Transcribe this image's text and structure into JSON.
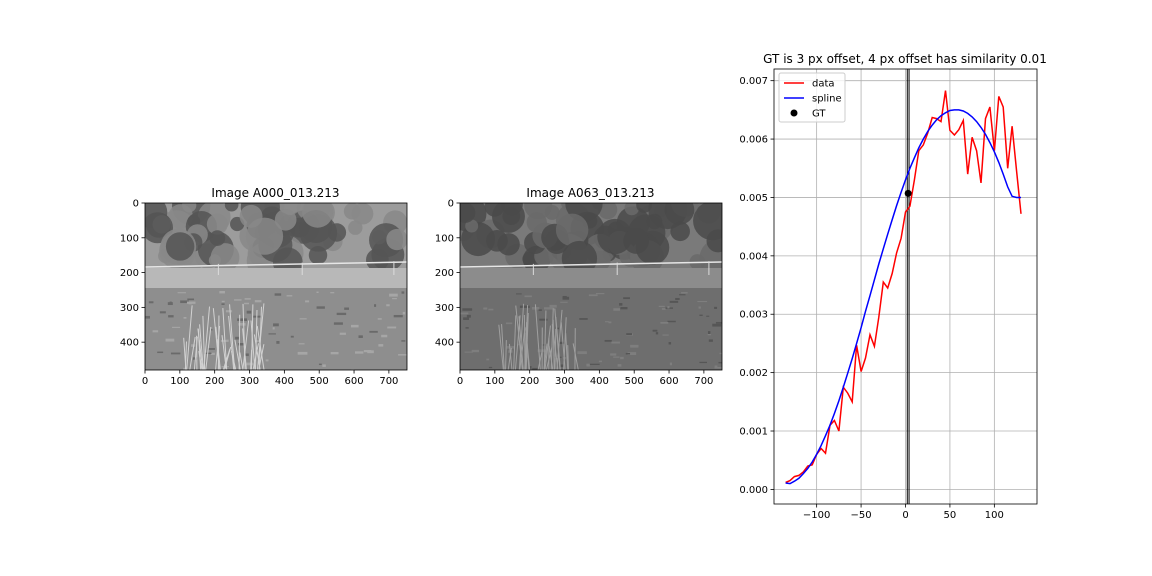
{
  "images": [
    {
      "title": "Image A000_013.213",
      "x_ticks": [
        "0",
        "100",
        "200",
        "300",
        "400",
        "500",
        "600",
        "700"
      ],
      "y_ticks": [
        "0",
        "100",
        "200",
        "300",
        "400"
      ],
      "brightness": "bright"
    },
    {
      "title": "Image A063_013.213",
      "x_ticks": [
        "0",
        "100",
        "200",
        "300",
        "400",
        "500",
        "600",
        "700"
      ],
      "y_ticks": [
        "0",
        "100",
        "200",
        "300",
        "400"
      ],
      "brightness": "dim"
    }
  ],
  "colors": {
    "data": "#ff0000",
    "spline": "#0000ff",
    "gt": "#000000",
    "grid": "#b0b0b0"
  },
  "chart_data": {
    "type": "line",
    "title": "GT is 3 px offset, 4 px offset has similarity 0.01",
    "xlabel": "",
    "ylabel": "",
    "xlim": [
      -148,
      148
    ],
    "ylim": [
      -0.00025,
      0.0072
    ],
    "x_ticks": [
      -100,
      -50,
      0,
      50,
      100
    ],
    "x_tick_labels": [
      "−100",
      "−50",
      "0",
      "50",
      "100"
    ],
    "y_ticks": [
      0.0,
      0.001,
      0.002,
      0.003,
      0.004,
      0.005,
      0.006,
      0.007
    ],
    "y_tick_labels": [
      "0.000",
      "0.001",
      "0.002",
      "0.003",
      "0.004",
      "0.005",
      "0.006",
      "0.007"
    ],
    "grid": true,
    "legend_position": "upper-left",
    "series": [
      {
        "name": "data",
        "type": "line",
        "color": "#ff0000",
        "x": [
          -135,
          -130,
          -125,
          -120,
          -115,
          -110,
          -105,
          -100,
          -95,
          -90,
          -85,
          -80,
          -75,
          -70,
          -65,
          -60,
          -55,
          -50,
          -45,
          -40,
          -35,
          -30,
          -25,
          -20,
          -15,
          -10,
          -5,
          0,
          5,
          10,
          15,
          20,
          25,
          30,
          35,
          40,
          45,
          50,
          55,
          60,
          65,
          70,
          75,
          80,
          85,
          90,
          95,
          100,
          105,
          110,
          115,
          120,
          125,
          130
        ],
        "y": [
          0.00012,
          0.00015,
          0.00022,
          0.00024,
          0.0003,
          0.0004,
          0.00042,
          0.0006,
          0.0007,
          0.00062,
          0.0011,
          0.00118,
          0.001,
          0.00175,
          0.00165,
          0.0015,
          0.00247,
          0.00202,
          0.00225,
          0.00265,
          0.00245,
          0.00295,
          0.00355,
          0.00345,
          0.0037,
          0.00405,
          0.0043,
          0.00475,
          0.00485,
          0.0053,
          0.0058,
          0.0059,
          0.0061,
          0.00637,
          0.00635,
          0.0063,
          0.00683,
          0.00615,
          0.00607,
          0.00616,
          0.00632,
          0.0054,
          0.00603,
          0.0058,
          0.00525,
          0.00635,
          0.00655,
          0.0058,
          0.00673,
          0.00655,
          0.0055,
          0.00622,
          0.00545,
          0.00472
        ]
      },
      {
        "name": "spline",
        "type": "line",
        "color": "#0000ff",
        "x": [
          -135,
          -130,
          -125,
          -120,
          -115,
          -110,
          -105,
          -100,
          -95,
          -90,
          -85,
          -80,
          -75,
          -70,
          -65,
          -60,
          -55,
          -50,
          -45,
          -40,
          -35,
          -30,
          -25,
          -20,
          -15,
          -10,
          -5,
          0,
          5,
          10,
          15,
          20,
          25,
          30,
          35,
          40,
          45,
          50,
          55,
          60,
          65,
          70,
          75,
          80,
          85,
          90,
          95,
          100,
          105,
          110,
          115,
          120,
          125,
          130
        ],
        "y": [
          0.00011,
          0.0001,
          0.00014,
          0.00019,
          0.00027,
          0.00036,
          0.00047,
          0.0006,
          0.00075,
          0.00092,
          0.0011,
          0.0013,
          0.00152,
          0.00175,
          0.00199,
          0.00224,
          0.0025,
          0.00277,
          0.00305,
          0.00332,
          0.00359,
          0.00386,
          0.00412,
          0.00437,
          0.00462,
          0.00486,
          0.00509,
          0.0053,
          0.0055,
          0.00568,
          0.00585,
          0.006,
          0.00613,
          0.00624,
          0.00633,
          0.0064,
          0.00645,
          0.00649,
          0.0065,
          0.0065,
          0.00648,
          0.00644,
          0.00638,
          0.0063,
          0.0062,
          0.00608,
          0.00594,
          0.00578,
          0.0056,
          0.0054,
          0.00518,
          0.00502,
          0.005,
          0.005
        ]
      },
      {
        "name": "GT",
        "type": "scatter",
        "color": "#000000",
        "x": [
          3
        ],
        "y": [
          0.00507
        ]
      }
    ],
    "vertical_lines": [
      2,
      4
    ]
  }
}
